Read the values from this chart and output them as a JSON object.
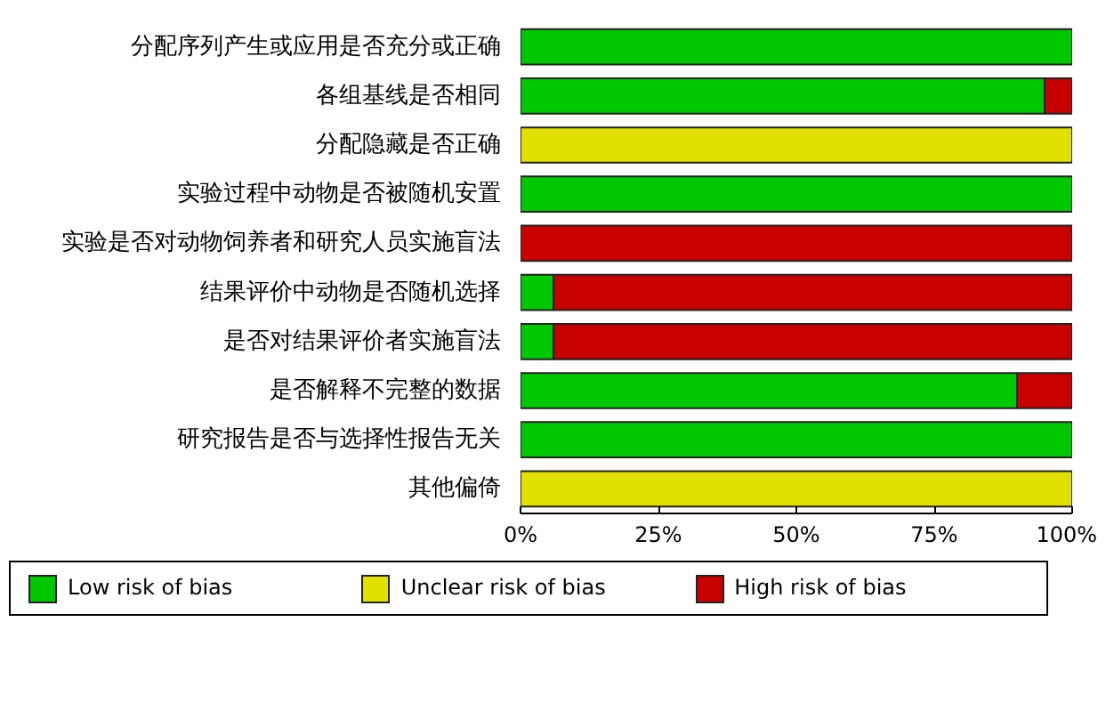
{
  "chart_data": {
    "type": "bar",
    "orientation": "horizontal",
    "stacked": true,
    "categories": [
      "分配序列产生或应用是否充分或正确",
      "各组基线是否相同",
      "分配隐藏是否正确",
      "实验过程中动物是否被随机安置",
      "实验是否对动物饲养者和研究人员实施盲法",
      "结果评价中动物是否随机选择",
      "是否对结果评价者实施盲法",
      "是否解释不完整的数据",
      "研究报告是否与选择性报告无关",
      "其他偏倚"
    ],
    "series": [
      {
        "name": "Low risk of bias",
        "color": "#00c800",
        "values": [
          100,
          95,
          0,
          100,
          0,
          6,
          6,
          90,
          100,
          0
        ]
      },
      {
        "name": "Unclear risk of bias",
        "color": "#e1e100",
        "values": [
          0,
          0,
          100,
          0,
          0,
          0,
          0,
          0,
          0,
          100
        ]
      },
      {
        "name": "High risk of bias",
        "color": "#c80000",
        "values": [
          0,
          5,
          0,
          0,
          100,
          94,
          94,
          10,
          0,
          0
        ]
      }
    ],
    "xlim": [
      0,
      100
    ],
    "xticks": [
      {
        "value": 0,
        "label": "0%"
      },
      {
        "value": 25,
        "label": "25%"
      },
      {
        "value": 50,
        "label": "50%"
      },
      {
        "value": 75,
        "label": "75%"
      },
      {
        "value": 100,
        "label": "100%"
      }
    ],
    "grid": false,
    "legend": "bottom"
  }
}
